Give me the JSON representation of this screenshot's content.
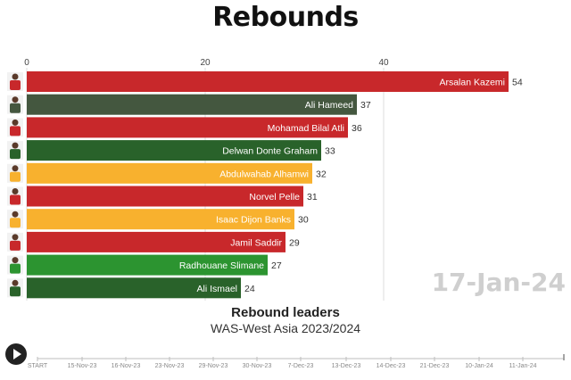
{
  "title": "Rebounds",
  "current_date": "17-Jan-24",
  "subtitle": "Rebound leaders",
  "caption": "WAS-West Asia 2023/2024",
  "chart_data": {
    "type": "bar",
    "orientation": "horizontal",
    "title": "Rebounds",
    "xlim": [
      0,
      60
    ],
    "x_ticks": [
      0,
      20,
      40
    ],
    "grid": true,
    "categories": [
      "Arsalan Kazemi",
      "Ali Hameed",
      "Mohamad Bilal Atli",
      "Delwan Donte Graham",
      "Abdulwahab Alhamwi",
      "Norvel Pelle",
      "Isaac Dijon Banks",
      "Jamil Saddir",
      "Radhouane Slimane",
      "Ali Ismael"
    ],
    "values": [
      54,
      37,
      36,
      33,
      32,
      31,
      30,
      29,
      27,
      24
    ],
    "colors": [
      "#c8282b",
      "#44573f",
      "#c8282b",
      "#29622a",
      "#f8b12e",
      "#c8282b",
      "#f8b12e",
      "#c8282b",
      "#2c9430",
      "#29622a"
    ]
  },
  "timeline": {
    "labels": [
      "START",
      "15-Nov-23",
      "16-Nov-23",
      "23-Nov-23",
      "29-Nov-23",
      "30-Nov-23",
      "7-Dec-23",
      "13-Dec-23",
      "14-Dec-23",
      "21-Dec-23",
      "10-Jan-24",
      "11-Jan-24"
    ]
  },
  "play_icon": "play-icon"
}
